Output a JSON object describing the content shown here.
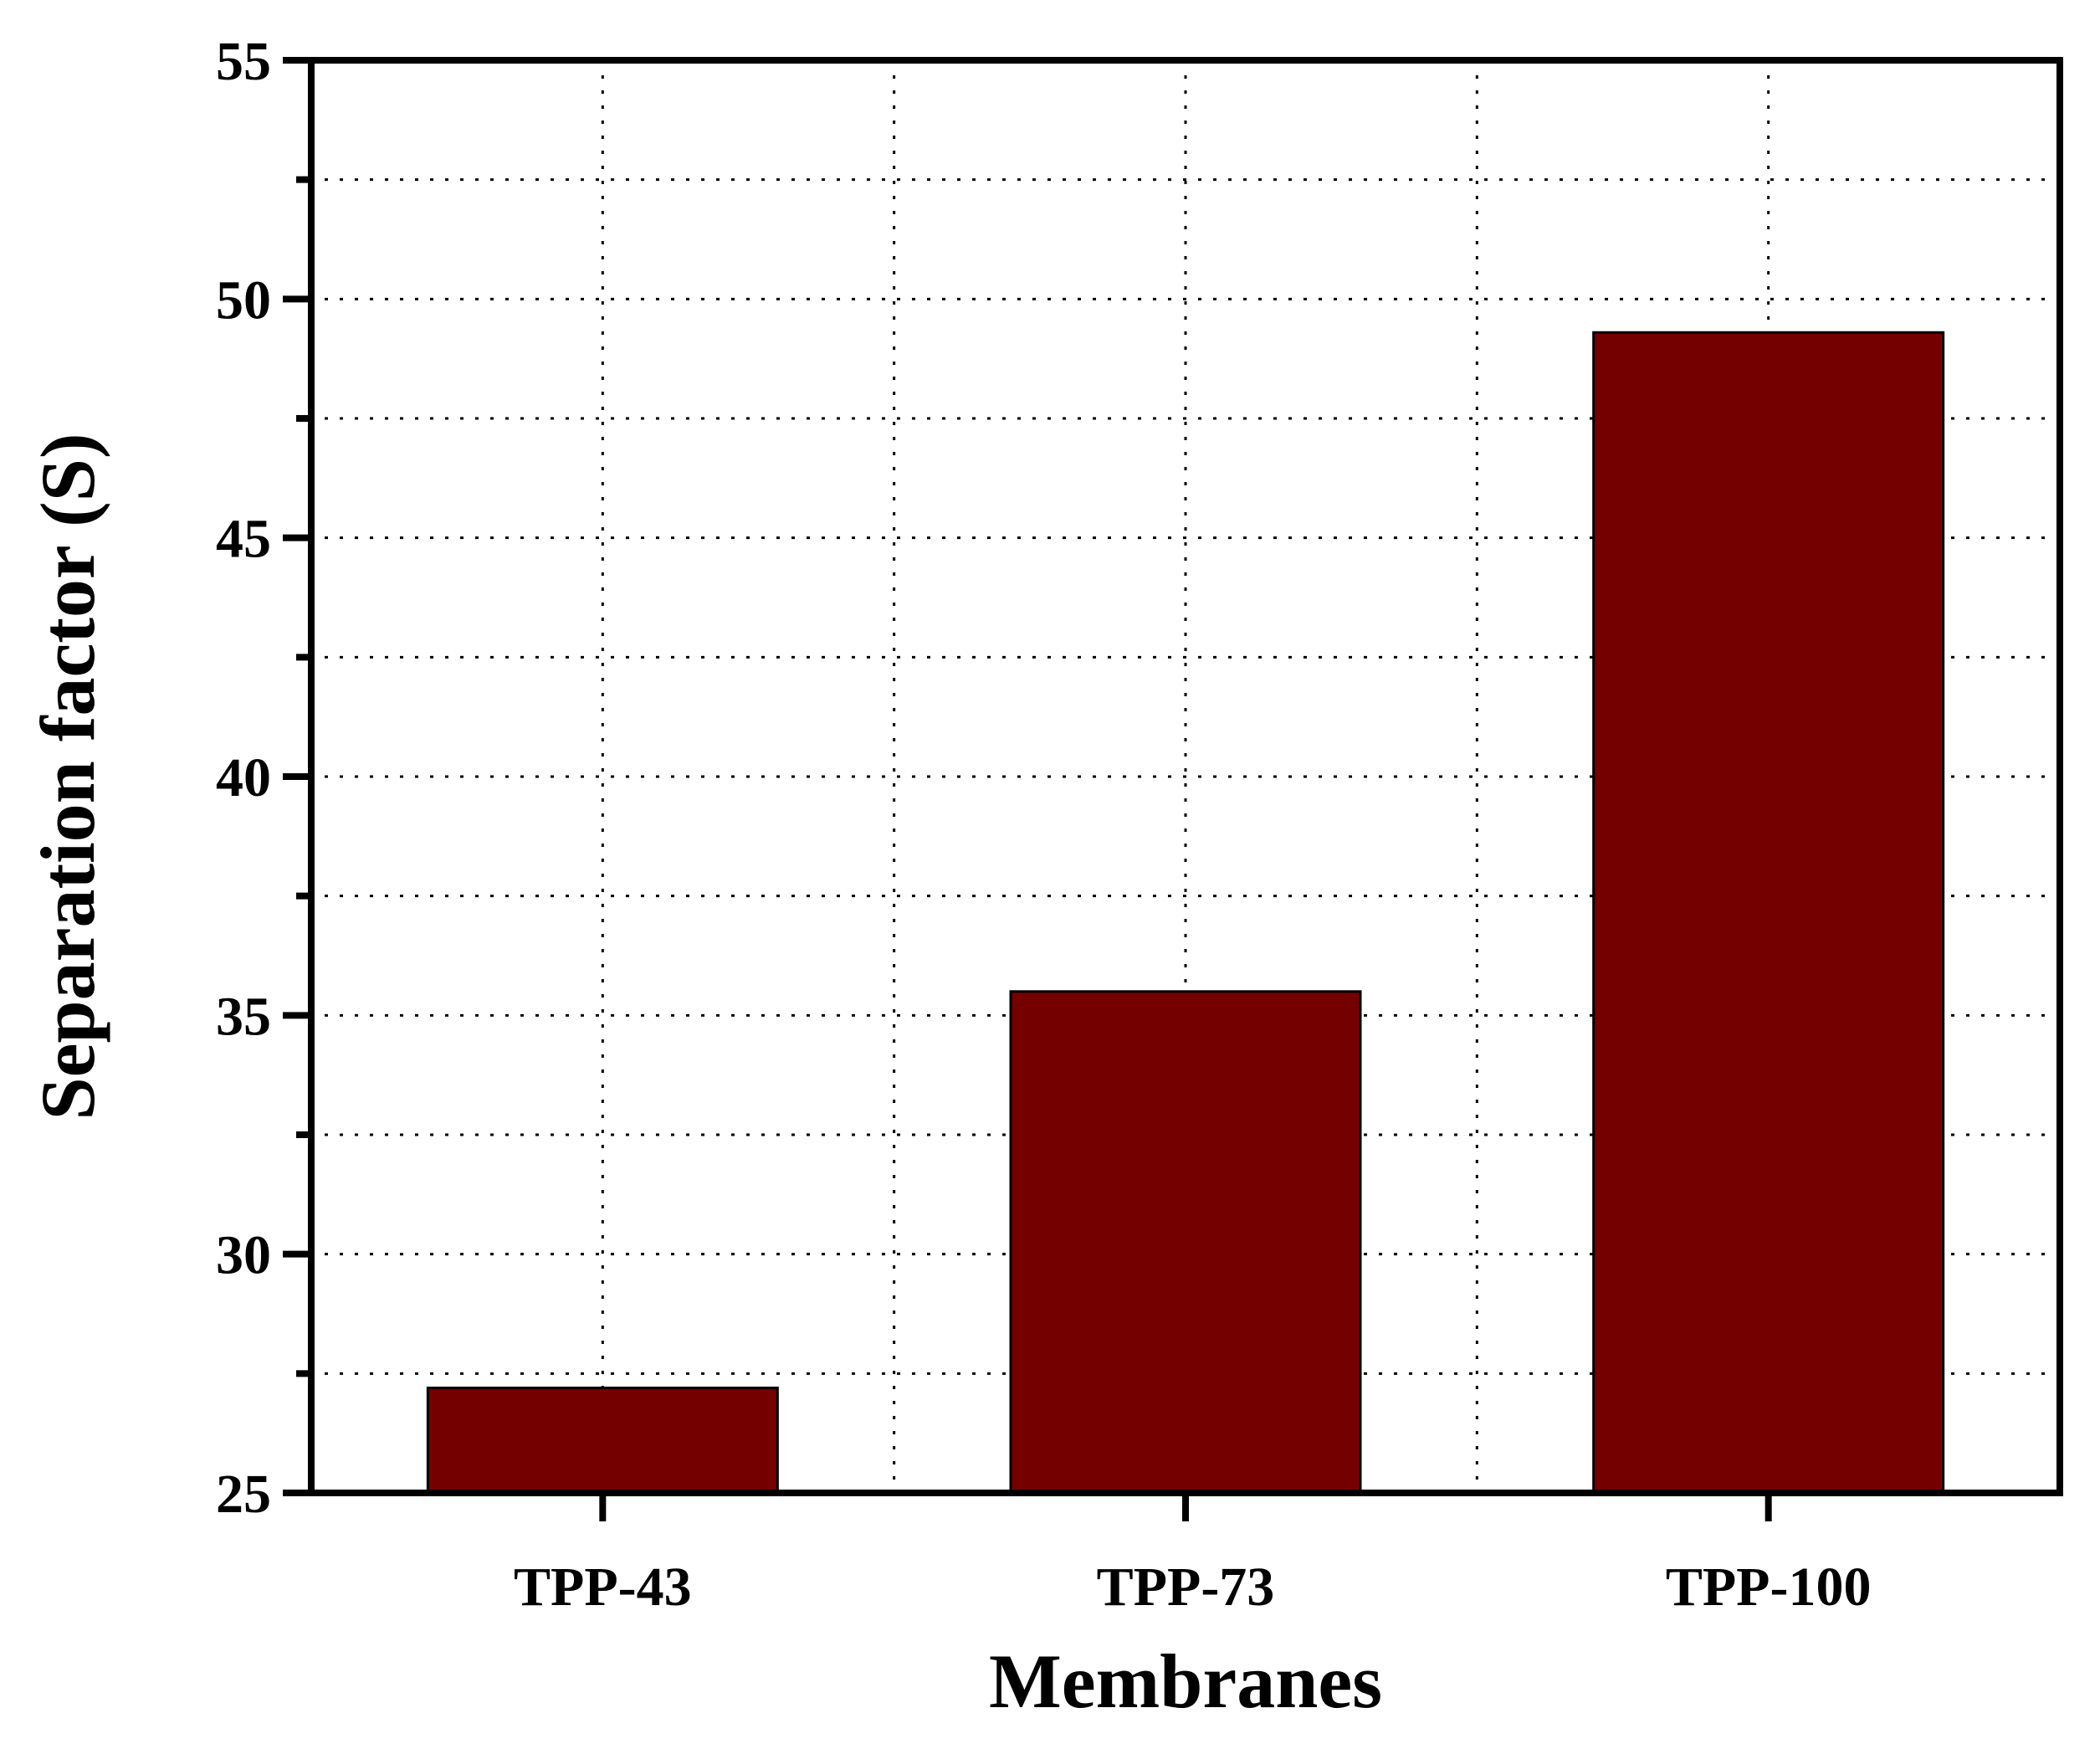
{
  "chart_data": {
    "type": "bar",
    "categories": [
      "TPP-43",
      "TPP-73",
      "TPP-100"
    ],
    "values": [
      27.2,
      35.5,
      49.3
    ],
    "title": "",
    "xlabel": "Membranes",
    "ylabel": "Separation factor (S)",
    "ylim": [
      25,
      55
    ],
    "yticks": [
      25,
      30,
      35,
      40,
      45,
      50,
      55
    ],
    "minor_y_step": 2.5,
    "grid": true,
    "bar_color": "#750000",
    "legend": "none"
  }
}
